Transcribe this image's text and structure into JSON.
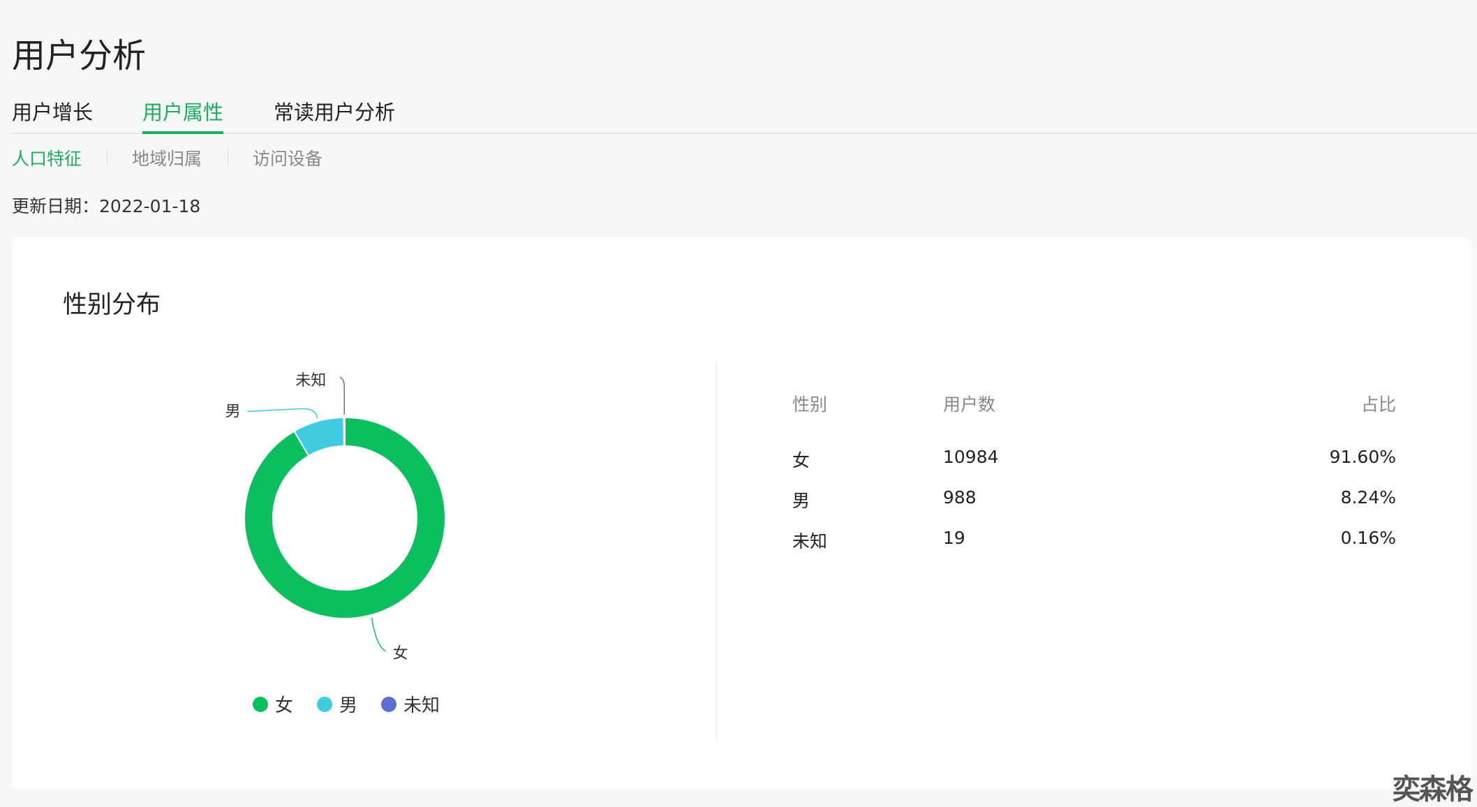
{
  "page": {
    "title": "用户分析",
    "update_label": "更新日期：",
    "update_date": "2022-01-18"
  },
  "tabs": [
    {
      "label": "用户增长"
    },
    {
      "label": "用户属性",
      "active": true
    },
    {
      "label": "常读用户分析"
    }
  ],
  "subtabs": [
    {
      "label": "人口特征",
      "active": true
    },
    {
      "label": "地域归属"
    },
    {
      "label": "访问设备"
    }
  ],
  "card": {
    "title": "性别分布"
  },
  "table": {
    "headers": [
      "性别",
      "用户数",
      "占比"
    ],
    "rows": [
      [
        "女",
        "10984",
        "91.60%"
      ],
      [
        "男",
        "988",
        "8.24%"
      ],
      [
        "未知",
        "19",
        "0.16%"
      ]
    ]
  },
  "chart_data": {
    "type": "pie",
    "donut": true,
    "legend_position": "bottom",
    "categories": [
      "女",
      "男",
      "未知"
    ],
    "values": [
      10984,
      988,
      19
    ],
    "colors": [
      "#0bbf5f",
      "#3fcbe0",
      "#5c6fd1"
    ]
  },
  "watermark": "奕森格",
  "colors": {
    "accent": "#1aad5b"
  }
}
